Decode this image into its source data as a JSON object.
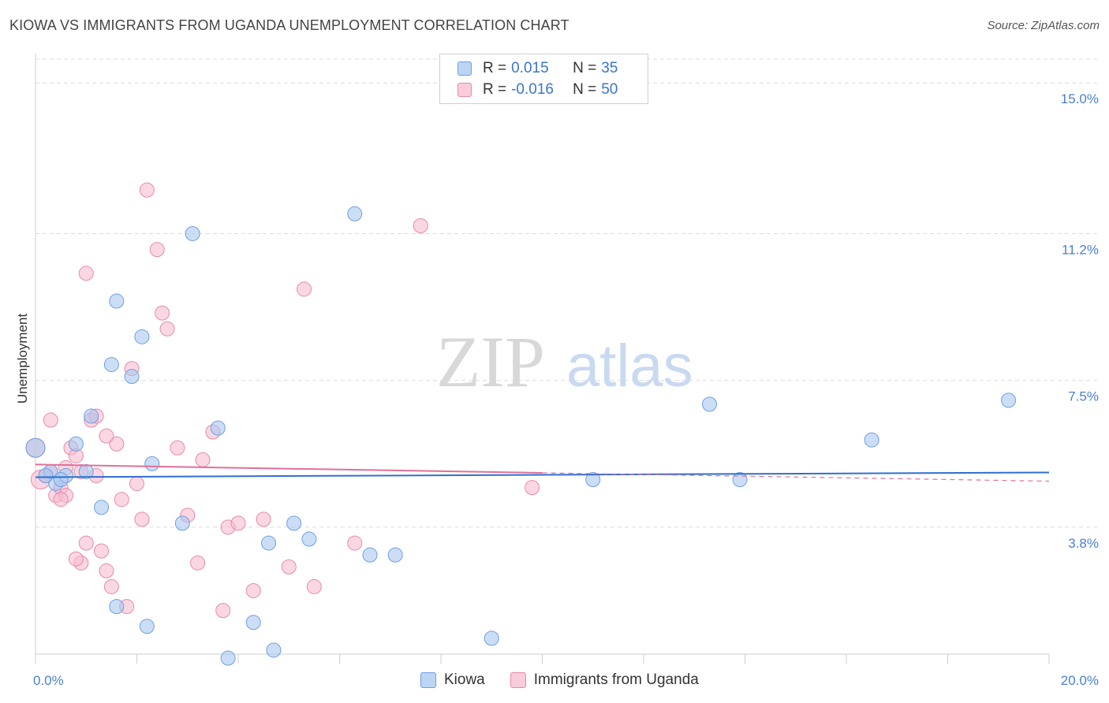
{
  "title": "KIOWA VS IMMIGRANTS FROM UGANDA UNEMPLOYMENT CORRELATION CHART",
  "source": "Source: ZipAtlas.com",
  "watermark": {
    "zip": "ZIP",
    "atlas": "atlas"
  },
  "colors": {
    "kiowa_fill": "#a9c8f0",
    "kiowa_stroke": "#6f9fdf",
    "kiowa_line": "#2f6fd0",
    "uganda_fill": "#f7bdd0",
    "uganda_stroke": "#e88aa8",
    "uganda_line": "#e0709a",
    "grid": "#dcdcdc",
    "tick_text": "#4a7fd4"
  },
  "legend": {
    "rows": [
      {
        "r_label": "R =",
        "r_value": "0.015",
        "n_label": "N =",
        "n_value": "35"
      },
      {
        "r_label": "R =",
        "r_value": "-0.016",
        "n_label": "N =",
        "n_value": "50"
      }
    ]
  },
  "bottom_legend": [
    "Kiowa",
    "Immigrants from Uganda"
  ],
  "chart_data": {
    "type": "scatter",
    "title": "KIOWA VS IMMIGRANTS FROM UGANDA UNEMPLOYMENT CORRELATION CHART",
    "xlabel": "",
    "ylabel": "Unemployment",
    "xlim": [
      0,
      20
    ],
    "ylim": [
      0.6,
      15.6
    ],
    "x_tick_labels": [
      "0.0%",
      "20.0%"
    ],
    "y_ticks": [
      3.8,
      7.5,
      11.2,
      15.0
    ],
    "y_tick_labels": [
      "3.8%",
      "7.5%",
      "11.2%",
      "15.0%"
    ],
    "grid": true,
    "series": [
      {
        "name": "Kiowa",
        "points": [
          [
            0.0,
            5.8,
            14
          ],
          [
            0.3,
            5.2,
            10
          ],
          [
            0.4,
            4.9,
            10
          ],
          [
            0.6,
            5.1,
            10
          ],
          [
            0.8,
            5.9,
            10
          ],
          [
            1.0,
            5.2,
            10
          ],
          [
            1.1,
            6.6,
            10
          ],
          [
            1.3,
            4.3,
            10
          ],
          [
            1.5,
            7.9,
            10
          ],
          [
            1.6,
            1.8,
            10
          ],
          [
            1.6,
            9.5,
            10
          ],
          [
            1.9,
            7.6,
            10
          ],
          [
            2.1,
            8.6,
            10
          ],
          [
            2.2,
            1.3,
            10
          ],
          [
            2.3,
            5.4,
            10
          ],
          [
            2.9,
            3.9,
            10
          ],
          [
            3.1,
            11.2,
            10
          ],
          [
            3.6,
            6.3,
            10
          ],
          [
            3.8,
            0.5,
            10
          ],
          [
            4.3,
            1.4,
            10
          ],
          [
            4.6,
            3.4,
            10
          ],
          [
            4.7,
            0.7,
            10
          ],
          [
            5.1,
            3.9,
            10
          ],
          [
            5.4,
            3.5,
            10
          ],
          [
            6.3,
            11.7,
            10
          ],
          [
            6.6,
            3.1,
            10
          ],
          [
            7.1,
            3.1,
            10
          ],
          [
            9.0,
            1.0,
            10
          ],
          [
            11.0,
            5.0,
            10
          ],
          [
            13.3,
            6.9,
            10
          ],
          [
            13.9,
            5.0,
            10
          ],
          [
            16.5,
            6.0,
            10
          ],
          [
            19.2,
            7.0,
            10
          ],
          [
            0.2,
            5.1,
            10
          ],
          [
            0.5,
            5.0,
            10
          ]
        ],
        "trend": [
          [
            0,
            5.06
          ],
          [
            20,
            5.18
          ]
        ]
      },
      {
        "name": "Immigrants from Uganda",
        "points": [
          [
            0.0,
            5.8,
            14
          ],
          [
            0.1,
            5.0,
            12
          ],
          [
            0.2,
            5.1,
            10
          ],
          [
            0.3,
            5.2,
            10
          ],
          [
            0.4,
            4.6,
            10
          ],
          [
            0.5,
            4.8,
            10
          ],
          [
            0.6,
            4.6,
            10
          ],
          [
            0.7,
            5.8,
            10
          ],
          [
            0.8,
            5.6,
            10
          ],
          [
            0.9,
            2.9,
            10
          ],
          [
            1.0,
            3.4,
            10
          ],
          [
            1.1,
            6.5,
            10
          ],
          [
            1.2,
            6.6,
            10
          ],
          [
            1.3,
            3.2,
            10
          ],
          [
            1.4,
            2.7,
            10
          ],
          [
            1.5,
            2.3,
            10
          ],
          [
            1.6,
            5.9,
            10
          ],
          [
            1.7,
            4.5,
            10
          ],
          [
            1.8,
            1.8,
            10
          ],
          [
            1.9,
            7.8,
            10
          ],
          [
            2.0,
            4.9,
            10
          ],
          [
            2.2,
            12.3,
            10
          ],
          [
            2.4,
            10.8,
            10
          ],
          [
            2.5,
            9.2,
            10
          ],
          [
            2.6,
            8.8,
            10
          ],
          [
            2.8,
            5.8,
            10
          ],
          [
            3.0,
            4.1,
            10
          ],
          [
            3.2,
            2.9,
            10
          ],
          [
            3.3,
            5.5,
            10
          ],
          [
            3.5,
            6.2,
            10
          ],
          [
            3.7,
            1.7,
            10
          ],
          [
            3.8,
            3.8,
            10
          ],
          [
            4.0,
            3.9,
            10
          ],
          [
            4.3,
            2.2,
            10
          ],
          [
            4.5,
            4.0,
            10
          ],
          [
            5.0,
            2.8,
            10
          ],
          [
            5.3,
            9.8,
            10
          ],
          [
            5.5,
            2.3,
            10
          ],
          [
            6.3,
            3.4,
            10
          ],
          [
            7.6,
            11.4,
            10
          ],
          [
            9.8,
            4.8,
            10
          ],
          [
            1.0,
            10.2,
            10
          ],
          [
            0.9,
            5.2,
            10
          ],
          [
            1.2,
            5.1,
            10
          ],
          [
            0.3,
            6.5,
            10
          ],
          [
            0.5,
            4.5,
            10
          ],
          [
            0.8,
            3.0,
            10
          ],
          [
            1.4,
            6.1,
            10
          ],
          [
            2.1,
            4.0,
            10
          ],
          [
            0.6,
            5.3,
            10
          ]
        ],
        "trend": [
          [
            0,
            5.38
          ],
          [
            10,
            5.17
          ]
        ],
        "trend_dashed": [
          [
            10,
            5.17
          ],
          [
            20,
            4.96
          ]
        ]
      }
    ]
  }
}
